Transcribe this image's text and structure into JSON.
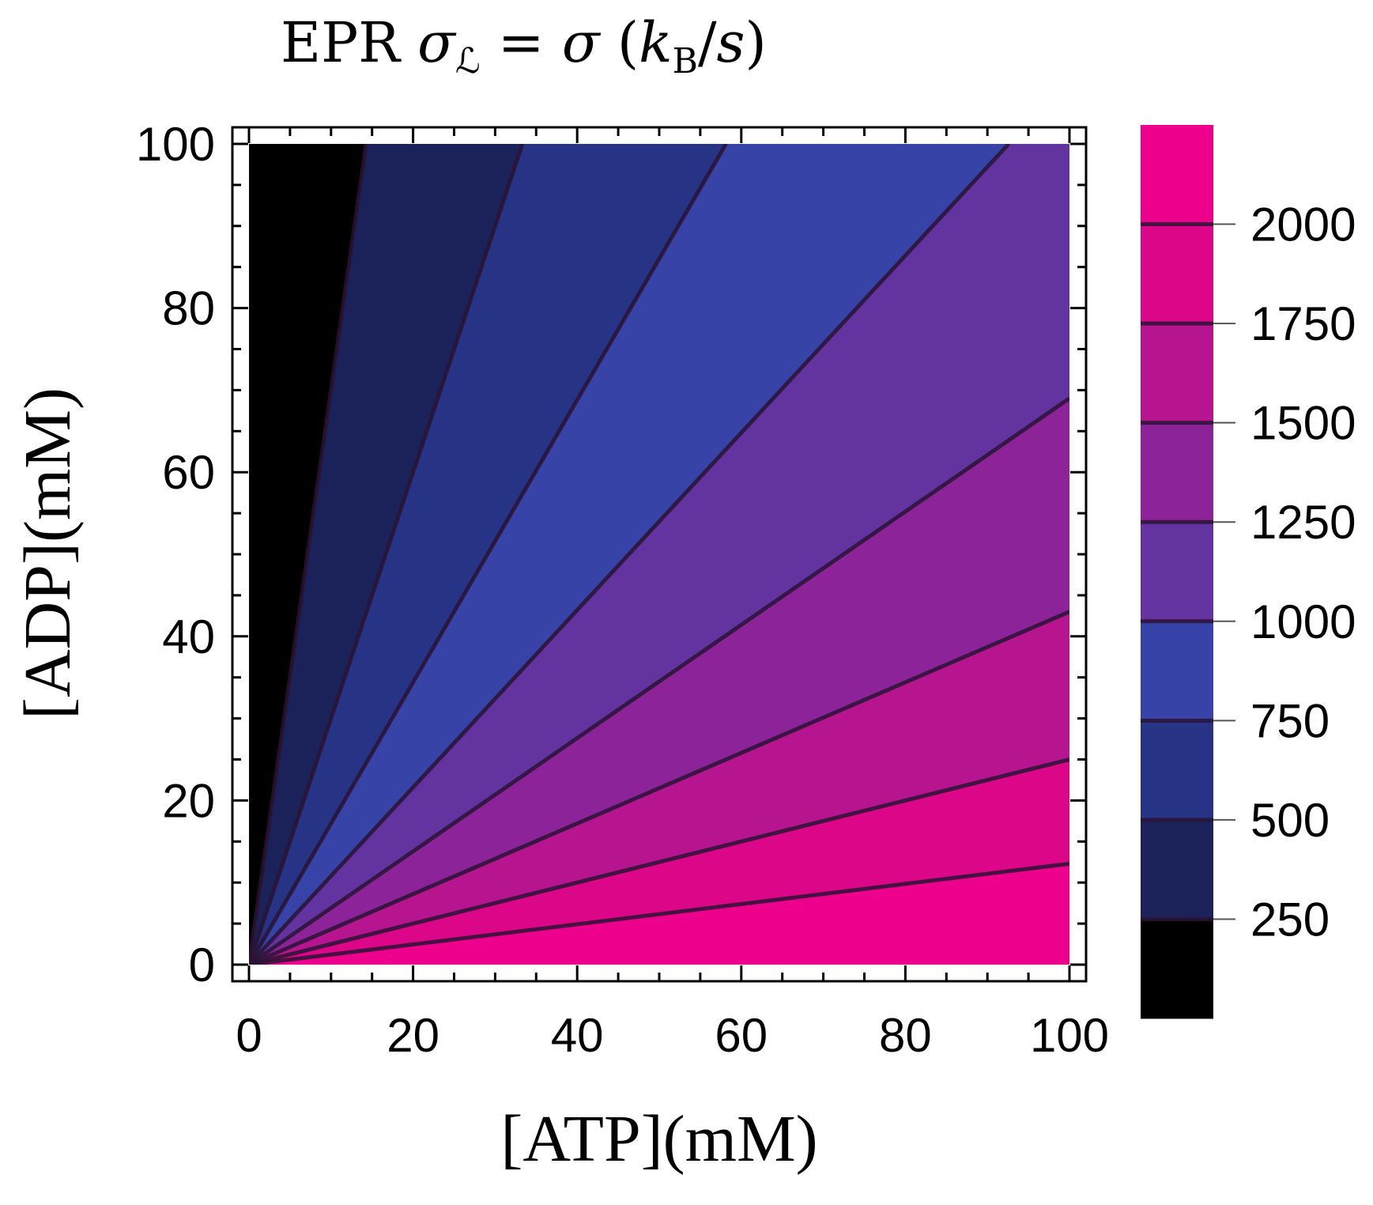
{
  "chart_data": {
    "type": "contour",
    "title": {
      "prefix": "EPR ",
      "sigma": "σ",
      "sigma_sub": "ℒ",
      "equals": " = ",
      "sigma2": "σ",
      "open": " (",
      "k": "k",
      "k_sub": "B",
      "slash": "/",
      "s": "s",
      "close": ")"
    },
    "xlabel": "[ATP](mM)",
    "ylabel": "[ADP](mM)",
    "xlim": [
      0,
      100
    ],
    "ylim": [
      0,
      100
    ],
    "x_major_ticks": [
      0,
      20,
      40,
      60,
      80,
      100
    ],
    "y_major_ticks": [
      0,
      20,
      40,
      60,
      80,
      100
    ],
    "minor_tick_step": 5,
    "contour_levels": [
      250,
      500,
      750,
      1000,
      1250,
      1500,
      1750,
      2000
    ],
    "contour_lines_adp_over_atp": [
      7.0,
      3.0,
      1.72,
      1.08,
      0.69,
      0.43,
      0.25,
      0.123
    ],
    "band_colors": [
      "#000000",
      "#1b2259",
      "#273385",
      "#3743a6",
      "#6333a0",
      "#8c2398",
      "#b6158f",
      "#dc0788",
      "#ec008c"
    ],
    "contour_line_color": "#2a1335",
    "colorbar": {
      "levels": [
        250,
        500,
        750,
        1000,
        1250,
        1500,
        1750,
        2000
      ],
      "labels": [
        "250",
        "500",
        "750",
        "1000",
        "1250",
        "1500",
        "1750",
        "2000"
      ],
      "range": [
        0,
        2250
      ]
    }
  }
}
